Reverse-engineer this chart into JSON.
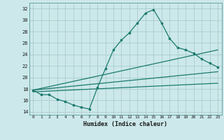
{
  "xlabel": "Humidex (Indice chaleur)",
  "xlim": [
    -0.5,
    23.5
  ],
  "ylim": [
    13.5,
    33.0
  ],
  "yticks": [
    14,
    16,
    18,
    20,
    22,
    24,
    26,
    28,
    30,
    32
  ],
  "xticks": [
    0,
    1,
    2,
    3,
    4,
    5,
    6,
    7,
    8,
    9,
    10,
    11,
    12,
    13,
    14,
    15,
    16,
    17,
    18,
    19,
    20,
    21,
    22,
    23
  ],
  "bg_color": "#cce8ea",
  "grid_color": "#aacccc",
  "line_color": "#1a7a6e",
  "main_curve": [
    [
      0,
      17.8
    ],
    [
      1,
      17.0
    ],
    [
      2,
      17.0
    ],
    [
      3,
      16.2
    ],
    [
      4,
      15.8
    ],
    [
      5,
      15.2
    ],
    [
      6,
      14.8
    ],
    [
      7,
      14.5
    ],
    [
      8,
      18.2
    ],
    [
      9,
      21.5
    ],
    [
      10,
      24.8
    ],
    [
      11,
      26.5
    ],
    [
      12,
      27.8
    ],
    [
      13,
      29.5
    ],
    [
      14,
      31.2
    ],
    [
      15,
      31.8
    ],
    [
      16,
      29.5
    ],
    [
      17,
      26.8
    ],
    [
      18,
      25.2
    ],
    [
      19,
      24.8
    ],
    [
      20,
      24.2
    ],
    [
      21,
      23.2
    ],
    [
      22,
      22.5
    ],
    [
      23,
      21.8
    ]
  ],
  "trend_line1": [
    [
      0,
      17.8
    ],
    [
      23,
      21.0
    ]
  ],
  "trend_line2": [
    [
      0,
      17.8
    ],
    [
      23,
      24.8
    ]
  ],
  "trend_line3": [
    [
      0,
      17.5
    ],
    [
      23,
      19.0
    ]
  ]
}
